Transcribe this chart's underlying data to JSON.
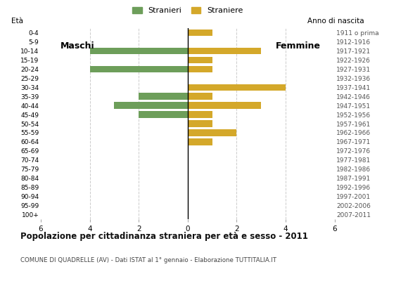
{
  "age_groups": [
    "0-4",
    "5-9",
    "10-14",
    "15-19",
    "20-24",
    "25-29",
    "30-34",
    "35-39",
    "40-44",
    "45-49",
    "50-54",
    "55-59",
    "60-64",
    "65-69",
    "70-74",
    "75-79",
    "80-84",
    "85-89",
    "90-94",
    "95-99",
    "100+"
  ],
  "birth_years": [
    "2007-2011",
    "2002-2006",
    "1997-2001",
    "1992-1996",
    "1987-1991",
    "1982-1986",
    "1977-1981",
    "1972-1976",
    "1967-1971",
    "1962-1966",
    "1957-1961",
    "1952-1956",
    "1947-1951",
    "1942-1946",
    "1937-1941",
    "1932-1936",
    "1927-1931",
    "1922-1926",
    "1917-1921",
    "1912-1916",
    "1911 o prima"
  ],
  "males": [
    0,
    0,
    4,
    0,
    4,
    0,
    0,
    2,
    3,
    2,
    0,
    0,
    0,
    0,
    0,
    0,
    0,
    0,
    0,
    0,
    0
  ],
  "females": [
    1,
    0,
    3,
    1,
    1,
    0,
    4,
    1,
    3,
    1,
    1,
    2,
    1,
    0,
    0,
    0,
    0,
    0,
    0,
    0,
    0
  ],
  "male_color": "#6d9e5a",
  "female_color": "#d4a82a",
  "title": "Popolazione per cittadinanza straniera per età e sesso - 2011",
  "subtitle": "COMUNE DI QUADRELLE (AV) - Dati ISTAT al 1° gennaio - Elaborazione TUTTITALIA.IT",
  "legend_male": "Stranieri",
  "legend_female": "Straniere",
  "label_eta": "Età",
  "label_maschi": "Maschi",
  "label_femmine": "Femmine",
  "label_anno": "Anno di nascita",
  "xlim": 6,
  "background_color": "#ffffff",
  "grid_color": "#cccccc",
  "bar_height": 0.72
}
